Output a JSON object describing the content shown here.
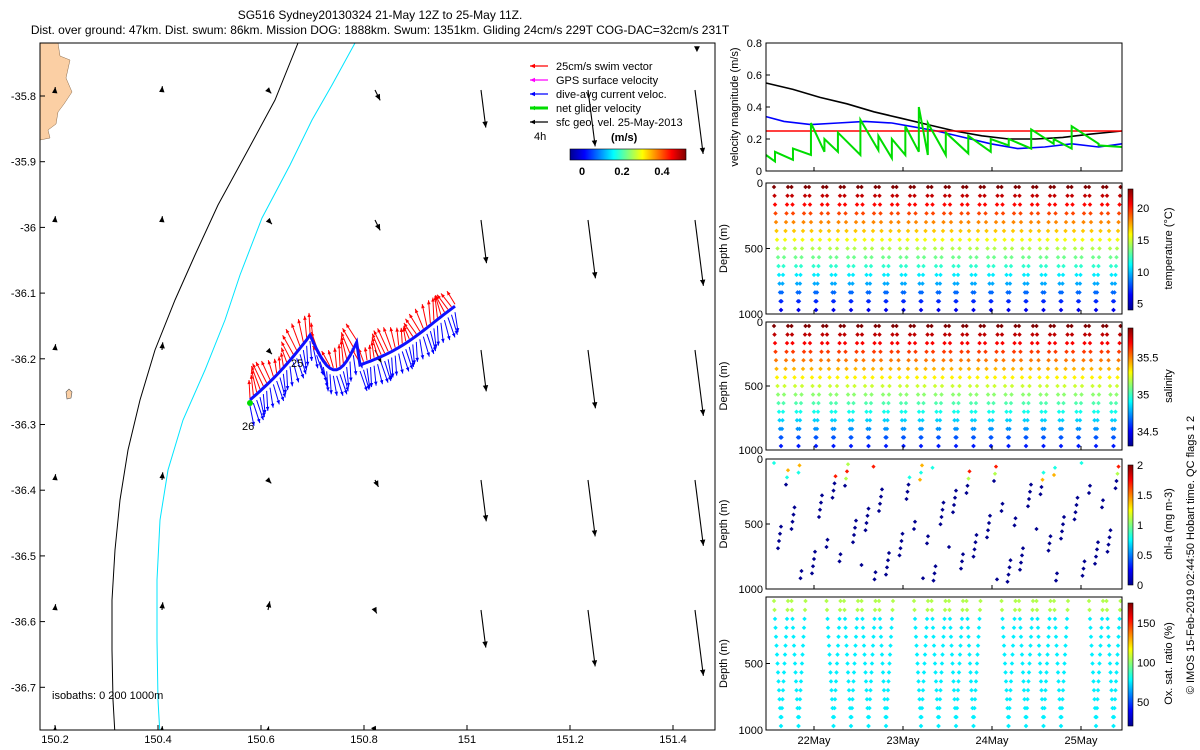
{
  "header": {
    "line1": "SG516 Sydney20130324 21-May 12Z to 25-May 11Z.",
    "line2": "Dist. over ground: 47km. Dist. swum: 86km. Mission DOG: 1888km. Swum: 1351km. Gliding 24cm/s 229T COG-DAC=32cm/s 231T"
  },
  "colors": {
    "land": "#fbcfa4",
    "swim": "#ff0000",
    "gps": "#ff00ff",
    "dac": "#0000ff",
    "net": "#00dd00",
    "geo": "#000000",
    "isobath200": "#000000",
    "isobath1000": "#00e5ff"
  },
  "legend": {
    "items": [
      {
        "label": "25cm/s swim vector",
        "color": "#ff0000"
      },
      {
        "label": "GPS surface velocity",
        "color": "#ff00ff"
      },
      {
        "label": "dive-avg current veloc.",
        "color": "#0000ff"
      },
      {
        "label": "net glider velocity",
        "color": "#00dd00"
      },
      {
        "label": "sfc geo. vel. 25-May-2013",
        "color": "#000000"
      }
    ],
    "interval": "4h",
    "colorbar_title": "(m/s)",
    "colorbar_ticks": [
      "0",
      "0.2",
      "0.4"
    ]
  },
  "map": {
    "isobaths_label": "isobaths: 0   200  1000m",
    "start_label": "25",
    "end_label": "26",
    "xticks": [
      "150.2",
      "150.4",
      "150.6",
      "150.8",
      "151",
      "151.2",
      "151.4"
    ],
    "yticks": [
      "-35.8",
      "-35.9",
      "-36",
      "-36.1",
      "-36.2",
      "-36.3",
      "-36.4",
      "-36.5",
      "-36.6",
      "-36.7"
    ]
  },
  "chart_data": [
    {
      "type": "line",
      "name": "velocity",
      "ylabel": "velocity magnitude (m/s)",
      "ylim": [
        0,
        0.8
      ],
      "yticks": [
        "0",
        "0.2",
        "0.4",
        "0.6",
        "0.8"
      ],
      "xlim": [
        21.5,
        25.46
      ],
      "series": [
        {
          "color": "#000000",
          "x": [
            21.5,
            21.8,
            22.1,
            22.4,
            22.7,
            23.0,
            23.3,
            23.6,
            23.9,
            24.2,
            24.5,
            24.8,
            25.1,
            25.46
          ],
          "y": [
            0.55,
            0.51,
            0.46,
            0.42,
            0.37,
            0.33,
            0.29,
            0.25,
            0.22,
            0.2,
            0.2,
            0.21,
            0.23,
            0.25
          ]
        },
        {
          "color": "#0000ff",
          "x": [
            21.5,
            21.7,
            22.0,
            22.3,
            22.6,
            22.9,
            23.1,
            23.4,
            23.7,
            24.0,
            24.3,
            24.6,
            24.9,
            25.2,
            25.46
          ],
          "y": [
            0.34,
            0.31,
            0.29,
            0.3,
            0.31,
            0.3,
            0.28,
            0.25,
            0.21,
            0.17,
            0.14,
            0.15,
            0.17,
            0.15,
            0.17
          ]
        },
        {
          "color": "#ff0000",
          "x": [
            21.5,
            25.46
          ],
          "y": [
            0.25,
            0.25
          ]
        },
        {
          "color": "#00dd00",
          "x": [
            21.5,
            21.6,
            21.6,
            21.8,
            21.8,
            22.0,
            22.0,
            22.15,
            22.15,
            22.3,
            22.3,
            22.55,
            22.55,
            22.75,
            22.75,
            22.9,
            22.9,
            23.05,
            23.05,
            23.2,
            23.2,
            23.3,
            23.3,
            23.5,
            23.5,
            23.75,
            23.75,
            24.0,
            24.0,
            24.2,
            24.2,
            24.45,
            24.45,
            24.7,
            24.7,
            24.9,
            24.9,
            25.2,
            25.2,
            25.46
          ],
          "y": [
            0.1,
            0.06,
            0.12,
            0.07,
            0.14,
            0.1,
            0.3,
            0.12,
            0.2,
            0.12,
            0.24,
            0.1,
            0.32,
            0.13,
            0.22,
            0.08,
            0.2,
            0.1,
            0.28,
            0.12,
            0.4,
            0.1,
            0.3,
            0.1,
            0.24,
            0.11,
            0.22,
            0.12,
            0.2,
            0.16,
            0.2,
            0.14,
            0.26,
            0.17,
            0.2,
            0.14,
            0.28,
            0.17,
            0.16,
            0.15
          ]
        }
      ]
    },
    {
      "type": "scatter",
      "name": "temperature",
      "ylabel": "Depth (m)",
      "clabel": "temperature (°C)",
      "ylim": [
        1000,
        0
      ],
      "yticks": [
        "0",
        "500",
        "1000"
      ],
      "cticks": [
        "5",
        "10",
        "15",
        "20"
      ],
      "clim": [
        4,
        23
      ]
    },
    {
      "type": "scatter",
      "name": "salinity",
      "ylabel": "Depth (m)",
      "clabel": "salinity",
      "ylim": [
        1000,
        0
      ],
      "yticks": [
        "0",
        "500",
        "1000"
      ],
      "cticks": [
        "34.5",
        "35",
        "35.5"
      ],
      "clim": [
        34.3,
        35.9
      ]
    },
    {
      "type": "scatter",
      "name": "chla",
      "ylabel": "Depth (m)",
      "clabel": "chl-a (mg m-3)",
      "ylim": [
        1000,
        0
      ],
      "yticks": [
        "0",
        "500",
        "1000"
      ],
      "cticks": [
        "0",
        "0.5",
        "1",
        "1.5",
        "2"
      ],
      "clim": [
        0,
        2
      ]
    },
    {
      "type": "scatter",
      "name": "oxygen",
      "ylabel": "Depth (m)",
      "clabel": "Ox. sat. ratio (%)",
      "ylim": [
        1000,
        0
      ],
      "yticks": [
        "500",
        "1000"
      ],
      "cticks": [
        "50",
        "100",
        "150"
      ],
      "clim": [
        20,
        175
      ]
    }
  ],
  "time_axis": {
    "ticks": [
      "22May",
      "23May",
      "24May",
      "25May"
    ]
  },
  "side_label": "© IMOS 15-Feb-2019 02:44:50 Hobart time. QC flags 1  2"
}
